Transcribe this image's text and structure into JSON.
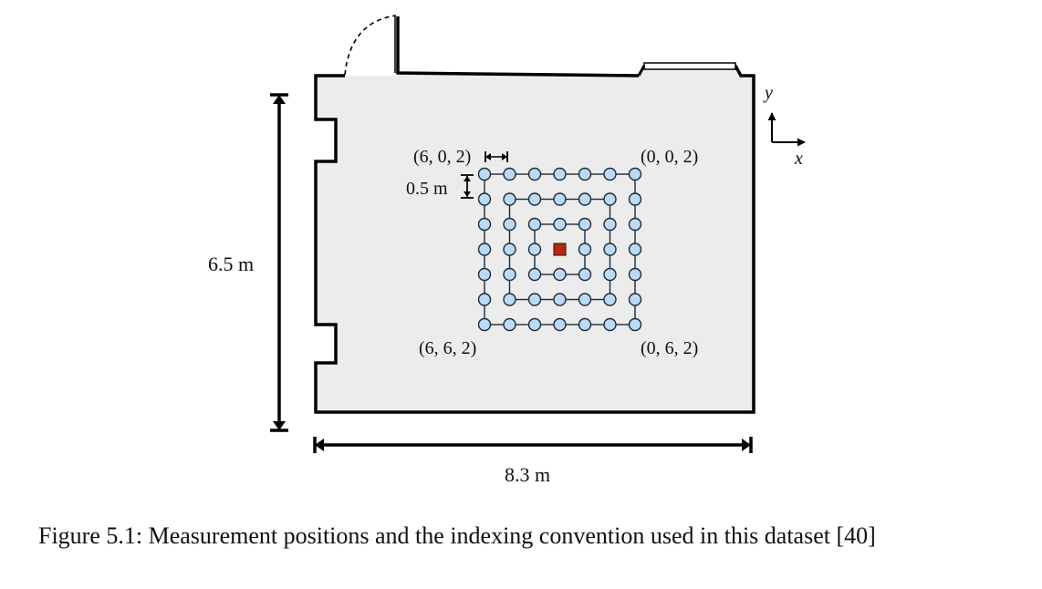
{
  "figure": {
    "dimensions": {
      "height": "6.5 m",
      "width": "8.3 m"
    },
    "axes": {
      "x": "x",
      "y": "y"
    },
    "corner_labels": {
      "top_left": "(6, 0, 2)",
      "top_right": "(0, 0, 2)",
      "bottom_left": "(6, 6, 2)",
      "bottom_right": "(0, 6, 2)"
    },
    "spacing_label": "0.5 m",
    "grid": {
      "columns": 7,
      "rows": 7,
      "rings": 3
    },
    "colors": {
      "room_fill": "#ececec",
      "wall": "#000000",
      "node_fill": "#bcdaf5",
      "node_stroke": "#1c2a3a",
      "source_fill": "#b02a10"
    }
  },
  "caption": "Figure 5.1: Measurement positions and the indexing convention used in this dataset [40]"
}
